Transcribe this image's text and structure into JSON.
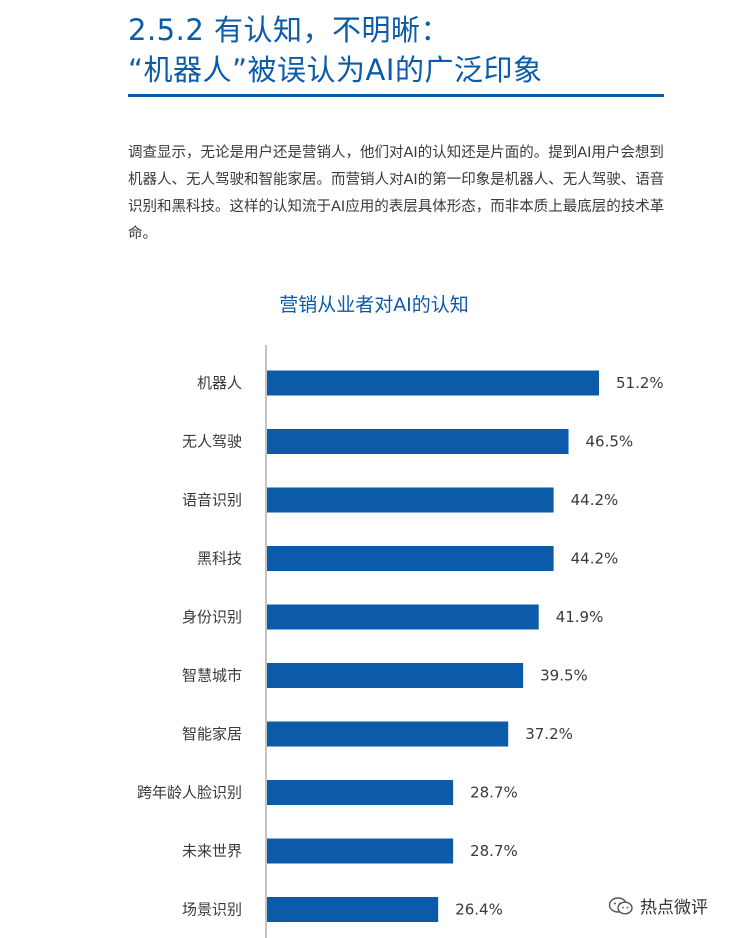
{
  "heading": {
    "line1": "2.5.2 有认知，不明晰：",
    "line2": "“机器人”被误认为AI的广泛印象"
  },
  "intro": "调查显示，无论是用户还是营销人，他们对AI的认知还是片面的。提到AI用户会想到机器人、无人驾驶和智能家居。而营销人对AI的第一印象是机器人、无人驾驶、语音识别和黑科技。这样的认知流于AI应用的表层具体形态，而非本质上最底层的技术革命。",
  "watermark": "热点微评",
  "colors": {
    "accent": "#0b5ba8",
    "bar": "#0b5ba8",
    "text": "#3a3a3a"
  },
  "chart_data": {
    "type": "bar",
    "orientation": "horizontal",
    "title": "营销从业者对AI的认知",
    "categories": [
      "机器人",
      "无人驾驶",
      "语音识别",
      "黑科技",
      "身份识别",
      "智慧城市",
      "智能家居",
      "跨年龄人脸识别",
      "未来世界",
      "场景识别"
    ],
    "values": [
      51.2,
      46.5,
      44.2,
      44.2,
      41.9,
      39.5,
      37.2,
      28.7,
      28.7,
      26.4
    ],
    "value_labels": [
      "51.2%",
      "46.5%",
      "44.2%",
      "44.2%",
      "41.9%",
      "39.5%",
      "37.2%",
      "28.7%",
      "28.7%",
      "26.4%"
    ],
    "xlim": [
      0,
      60
    ],
    "grid": false,
    "legend": "none"
  }
}
